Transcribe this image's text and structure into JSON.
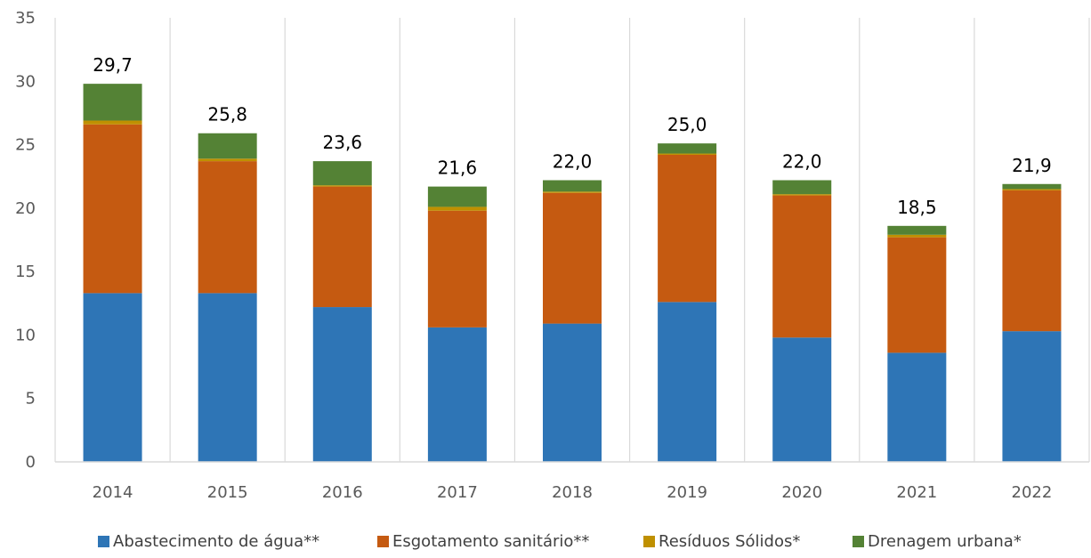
{
  "chart_data": {
    "type": "bar",
    "stacked": true,
    "title": "",
    "xlabel": "",
    "ylabel": "",
    "ylim": [
      0,
      35
    ],
    "yticks": [
      "0",
      "5",
      "10",
      "15",
      "20",
      "25",
      "30",
      "35"
    ],
    "grid": "vertical",
    "legend_position": "bottom",
    "categories": [
      "2014",
      "2015",
      "2016",
      "2017",
      "2018",
      "2019",
      "2020",
      "2021",
      "2022"
    ],
    "totals": [
      "29,7",
      "25,8",
      "23,6",
      "21,6",
      "22,0",
      "25,0",
      "22,0",
      "18,5",
      "21,9"
    ],
    "series": [
      {
        "name": "Abastecimento de água**",
        "color": "#2e75b6",
        "values": [
          13.3,
          13.3,
          12.2,
          10.6,
          10.9,
          12.6,
          9.8,
          8.6,
          10.3
        ]
      },
      {
        "name": "Esgotamento sanitário**",
        "color": "#c55a11",
        "values": [
          13.3,
          10.4,
          9.5,
          9.2,
          10.3,
          11.6,
          11.2,
          9.1,
          11.1
        ]
      },
      {
        "name": "Resíduos Sólidos*",
        "color": "#bf9000",
        "values": [
          0.3,
          0.2,
          0.1,
          0.3,
          0.1,
          0.1,
          0.1,
          0.2,
          0.1
        ]
      },
      {
        "name": "Drenagem urbana*",
        "color": "#548235",
        "values": [
          2.9,
          2.0,
          1.9,
          1.6,
          0.9,
          0.8,
          1.1,
          0.7,
          0.4
        ]
      }
    ]
  }
}
